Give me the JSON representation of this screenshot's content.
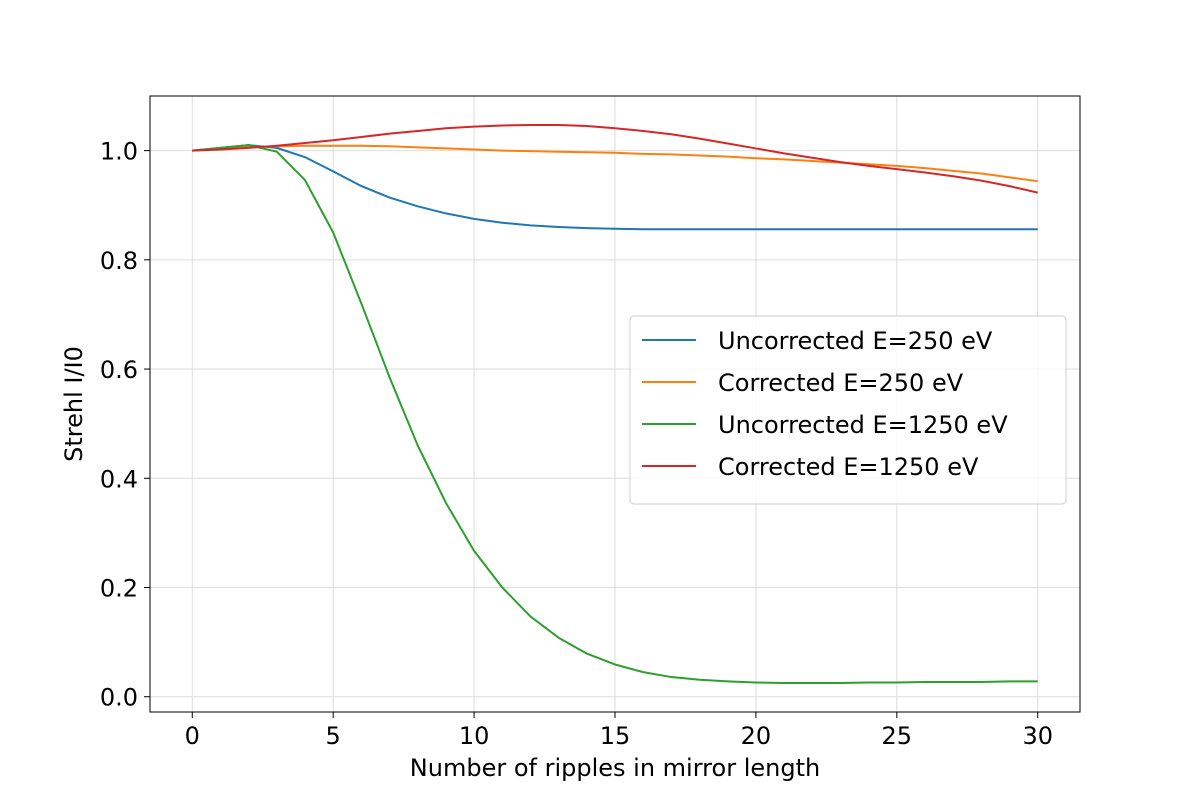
{
  "chart_data": {
    "type": "line",
    "xlabel": "Number of ripples in mirror length",
    "ylabel": "Strehl I/I0",
    "xlim": [
      -1.5,
      31.5
    ],
    "ylim": [
      -0.028,
      1.1
    ],
    "xticks": [
      0,
      5,
      10,
      15,
      20,
      25,
      30
    ],
    "yticks": [
      0.0,
      0.2,
      0.4,
      0.6,
      0.8,
      1.0
    ],
    "xtick_labels": [
      "0",
      "5",
      "10",
      "15",
      "20",
      "25",
      "30"
    ],
    "ytick_labels": [
      "0.0",
      "0.2",
      "0.4",
      "0.6",
      "0.8",
      "1.0"
    ],
    "grid": true,
    "legend_position": "center-right",
    "x": [
      0,
      1,
      2,
      3,
      4,
      5,
      6,
      7,
      8,
      9,
      10,
      11,
      12,
      13,
      14,
      15,
      16,
      17,
      18,
      19,
      20,
      21,
      22,
      23,
      24,
      25,
      26,
      27,
      28,
      29,
      30
    ],
    "series": [
      {
        "name": "Uncorrected E=250 eV",
        "color": "#1f77b4",
        "values": [
          1.0,
          1.005,
          1.01,
          1.005,
          0.988,
          0.962,
          0.935,
          0.914,
          0.898,
          0.885,
          0.875,
          0.868,
          0.863,
          0.86,
          0.858,
          0.857,
          0.856,
          0.856,
          0.856,
          0.856,
          0.856,
          0.856,
          0.856,
          0.856,
          0.856,
          0.856,
          0.856,
          0.856,
          0.856,
          0.856,
          0.856
        ]
      },
      {
        "name": "Corrected E=250 eV",
        "color": "#ff7f0e",
        "values": [
          1.0,
          1.003,
          1.006,
          1.008,
          1.009,
          1.009,
          1.009,
          1.008,
          1.006,
          1.004,
          1.002,
          1.0,
          0.999,
          0.998,
          0.997,
          0.996,
          0.994,
          0.993,
          0.991,
          0.989,
          0.986,
          0.984,
          0.981,
          0.978,
          0.975,
          0.972,
          0.968,
          0.963,
          0.958,
          0.951,
          0.944
        ]
      },
      {
        "name": "Uncorrected E=1250 eV",
        "color": "#2ca02c",
        "values": [
          1.0,
          1.005,
          1.01,
          0.998,
          0.946,
          0.85,
          0.72,
          0.585,
          0.46,
          0.355,
          0.267,
          0.2,
          0.147,
          0.108,
          0.079,
          0.059,
          0.045,
          0.036,
          0.031,
          0.028,
          0.026,
          0.025,
          0.025,
          0.025,
          0.026,
          0.026,
          0.027,
          0.027,
          0.027,
          0.028,
          0.028
        ]
      },
      {
        "name": "Corrected E=1250 eV",
        "color": "#d62728",
        "values": [
          1.0,
          1.002,
          1.005,
          1.009,
          1.014,
          1.019,
          1.025,
          1.031,
          1.036,
          1.041,
          1.044,
          1.046,
          1.047,
          1.047,
          1.045,
          1.041,
          1.036,
          1.03,
          1.022,
          1.013,
          1.004,
          0.995,
          0.987,
          0.979,
          0.972,
          0.966,
          0.96,
          0.953,
          0.945,
          0.935,
          0.923
        ]
      }
    ]
  }
}
